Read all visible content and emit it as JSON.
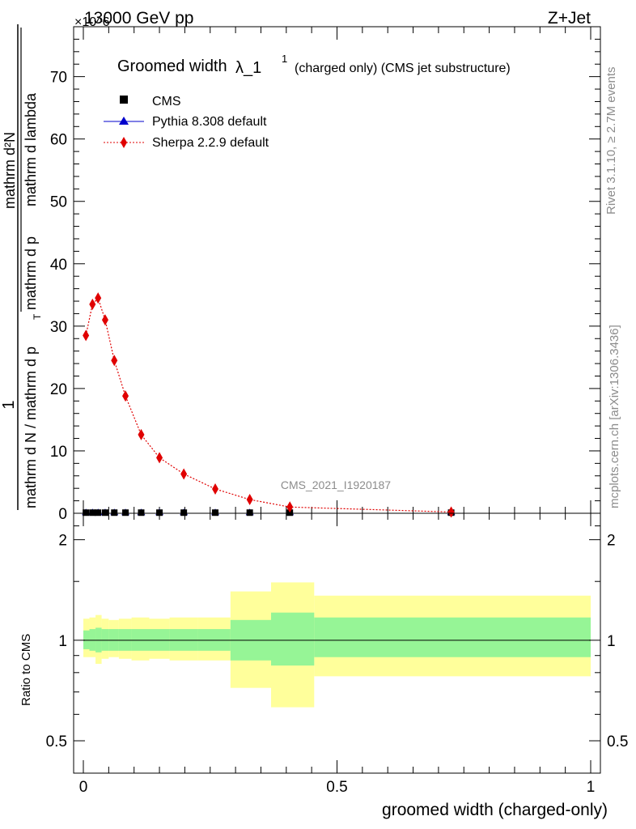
{
  "header": {
    "energy_label": "13000 GeV pp",
    "process_label": "Z+Jet",
    "multiplier": "×10^6"
  },
  "side_labels": {
    "rivet": "Rivet 3.1.10, ≥ 2.7M events",
    "mcplots": "mcplots.cern.ch [arXiv:1306.3436]"
  },
  "chart_data": [
    {
      "type": "line",
      "title_main": "Groomed width",
      "title_lambda": "λ_1",
      "title_sup": "1",
      "title_sub": "(charged only) (CMS jet substructure)",
      "ylabel_main": "mathrm d N / mathrm d p",
      "ylabel_sub": "T",
      "ylabel_rest": "mathrm d p",
      "ylabel_sub2": "T",
      "ylabel_rest2": "mathrm d lambda",
      "ylabel_num": "mathrm d²N",
      "ylabel_one": "1",
      "watermark": "CMS_2021_I1920187",
      "xlim": [
        0,
        1
      ],
      "ylim": [
        0,
        78
      ],
      "yticks": [
        0,
        10,
        20,
        30,
        40,
        50,
        60,
        70
      ],
      "legend_position": "top-left",
      "legend": [
        {
          "name": "CMS",
          "marker": "square",
          "color": "#000000"
        },
        {
          "name": "Pythia 8.308 default",
          "marker": "triangle",
          "color": "#0000cc"
        },
        {
          "name": "Sherpa 2.2.9 default",
          "marker": "diamond",
          "color": "#e00000"
        }
      ],
      "series": [
        {
          "name": "Sherpa 2.2.9 default",
          "x": [
            0.005,
            0.018,
            0.029,
            0.043,
            0.061,
            0.083,
            0.114,
            0.15,
            0.198,
            0.26,
            0.328,
            0.407,
            0.725
          ],
          "values": [
            28.5,
            33.5,
            34.5,
            31.0,
            24.5,
            18.8,
            12.6,
            8.9,
            6.3,
            3.9,
            2.2,
            1.0,
            0.2
          ]
        },
        {
          "name": "CMS",
          "x": [
            0.005,
            0.018,
            0.029,
            0.043,
            0.061,
            0.083,
            0.114,
            0.15,
            0.198,
            0.26,
            0.328,
            0.407,
            0.725
          ],
          "values": [
            0.1,
            0.1,
            0.1,
            0.1,
            0.1,
            0.1,
            0.1,
            0.1,
            0.1,
            0.1,
            0.1,
            0.1,
            0.1
          ]
        },
        {
          "name": "Pythia 8.308 default",
          "x": [
            0.005,
            0.018,
            0.029,
            0.043,
            0.061,
            0.083,
            0.114,
            0.15,
            0.198,
            0.26,
            0.328,
            0.407,
            0.725
          ],
          "values": [
            0.1,
            0.1,
            0.1,
            0.1,
            0.1,
            0.1,
            0.1,
            0.1,
            0.1,
            0.1,
            0.1,
            0.1,
            0.1
          ]
        }
      ]
    },
    {
      "type": "area",
      "ylabel": "Ratio to CMS",
      "xlabel": "groomed width (charged-only)",
      "xlim": [
        0,
        1
      ],
      "ylim": [
        0.4,
        2.4
      ],
      "log_y": true,
      "yticks": [
        0.5,
        1,
        2
      ],
      "ytick_labels": [
        "0.5",
        "1",
        "2"
      ],
      "xticks": [
        0,
        0.5,
        1
      ],
      "xtick_labels": [
        "0",
        "0.5",
        "1"
      ],
      "bands": [
        {
          "x0": 0.0,
          "x1": 0.012,
          "inner": [
            0.94,
            1.07
          ],
          "outer": [
            0.89,
            1.16
          ]
        },
        {
          "x0": 0.012,
          "x1": 0.024,
          "inner": [
            0.93,
            1.08
          ],
          "outer": [
            0.89,
            1.17
          ]
        },
        {
          "x0": 0.024,
          "x1": 0.036,
          "inner": [
            0.92,
            1.09
          ],
          "outer": [
            0.85,
            1.19
          ]
        },
        {
          "x0": 0.036,
          "x1": 0.05,
          "inner": [
            0.93,
            1.08
          ],
          "outer": [
            0.88,
            1.16
          ]
        },
        {
          "x0": 0.05,
          "x1": 0.07,
          "inner": [
            0.93,
            1.08
          ],
          "outer": [
            0.89,
            1.15
          ]
        },
        {
          "x0": 0.07,
          "x1": 0.095,
          "inner": [
            0.93,
            1.08
          ],
          "outer": [
            0.88,
            1.16
          ]
        },
        {
          "x0": 0.095,
          "x1": 0.13,
          "inner": [
            0.93,
            1.08
          ],
          "outer": [
            0.87,
            1.17
          ]
        },
        {
          "x0": 0.13,
          "x1": 0.17,
          "inner": [
            0.93,
            1.08
          ],
          "outer": [
            0.88,
            1.16
          ]
        },
        {
          "x0": 0.17,
          "x1": 0.225,
          "inner": [
            0.93,
            1.08
          ],
          "outer": [
            0.87,
            1.17
          ]
        },
        {
          "x0": 0.225,
          "x1": 0.29,
          "inner": [
            0.93,
            1.08
          ],
          "outer": [
            0.87,
            1.17
          ]
        },
        {
          "x0": 0.29,
          "x1": 0.37,
          "inner": [
            0.87,
            1.15
          ],
          "outer": [
            0.72,
            1.4
          ]
        },
        {
          "x0": 0.37,
          "x1": 0.455,
          "inner": [
            0.84,
            1.21
          ],
          "outer": [
            0.63,
            1.49
          ]
        },
        {
          "x0": 0.455,
          "x1": 1.0,
          "inner": [
            0.89,
            1.17
          ],
          "outer": [
            0.78,
            1.36
          ]
        }
      ],
      "reference": 1
    }
  ],
  "colors": {
    "band_inner": "#96f596",
    "band_outer": "#ffff9b",
    "sherpa": "#e00000",
    "pythia": "#0000cc",
    "cms": "#000000"
  }
}
